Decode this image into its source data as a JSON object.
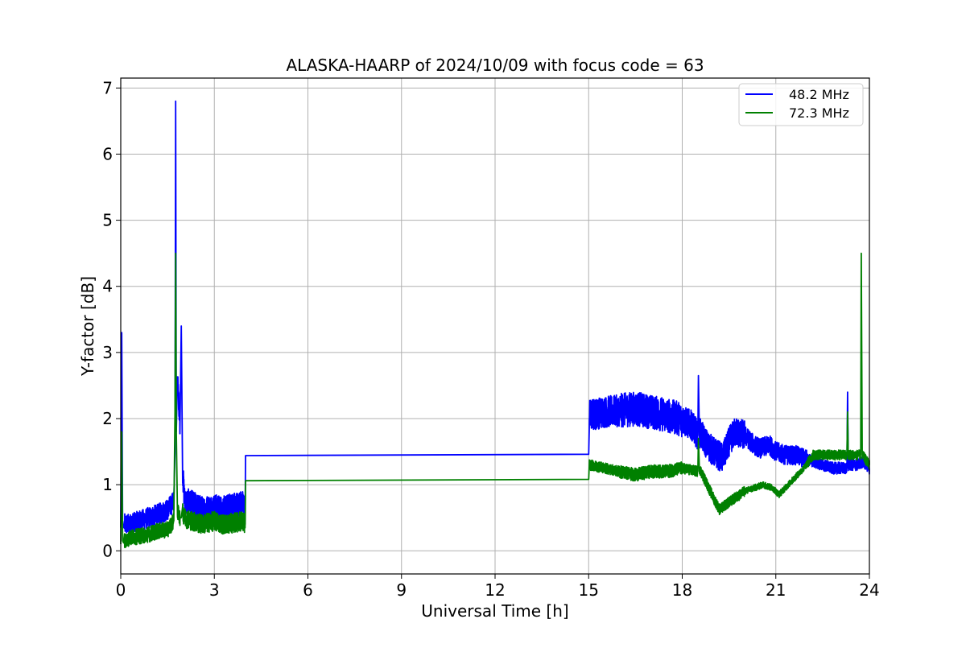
{
  "chart_data": {
    "type": "line",
    "title": "ALASKA-HAARP of 2024/10/09 with focus code = 63",
    "xlabel": "Universal Time [h]",
    "ylabel": "Y-factor [dB]",
    "xlim": [
      0,
      24
    ],
    "ylim": [
      -0.35,
      7.15
    ],
    "xticks": [
      0,
      3,
      6,
      9,
      12,
      15,
      18,
      21,
      24
    ],
    "yticks": [
      0,
      1,
      2,
      3,
      4,
      5,
      6,
      7
    ],
    "grid": true,
    "legend_position": "top-right",
    "series": [
      {
        "name": "48.2 MHz",
        "color": "#0000ff",
        "noise": [
          0.32,
          0.42,
          0.3,
          0.3,
          0.55,
          0.3,
          0.42,
          0.48,
          0.52,
          0.45,
          0.3,
          0.18
        ],
        "x": [
          0,
          0.03,
          0.06,
          0.09,
          0.12,
          0.3,
          0.6,
          0.9,
          1.2,
          1.5,
          1.7,
          1.74,
          1.76,
          1.78,
          1.82,
          1.9,
          1.94,
          1.98,
          2.05,
          2.3,
          2.6,
          3.0,
          3.3,
          3.6,
          3.9,
          3.99,
          4.0,
          15.0,
          15.02,
          15.5,
          16.0,
          16.5,
          17.0,
          17.5,
          17.9,
          18.3,
          18.5,
          18.52,
          18.55,
          18.8,
          19.0,
          19.3,
          19.5,
          19.7,
          20.0,
          20.3,
          20.5,
          20.8,
          21.0,
          21.3,
          21.6,
          21.9,
          22.2,
          22.5,
          22.8,
          23.1,
          23.28,
          23.3,
          23.32,
          23.6,
          23.8,
          24.0
        ],
        "y": [
          0.35,
          3.3,
          0.4,
          0.35,
          0.4,
          0.4,
          0.45,
          0.5,
          0.55,
          0.62,
          0.75,
          1.5,
          6.8,
          1.8,
          2.6,
          1.9,
          3.4,
          1.2,
          0.75,
          0.7,
          0.62,
          0.65,
          0.62,
          0.68,
          0.7,
          0.65,
          1.44,
          1.46,
          2.05,
          2.1,
          2.12,
          2.15,
          2.1,
          2.05,
          2.0,
          1.9,
          1.75,
          2.65,
          1.8,
          1.6,
          1.5,
          1.4,
          1.65,
          1.8,
          1.75,
          1.6,
          1.55,
          1.6,
          1.5,
          1.45,
          1.45,
          1.4,
          1.35,
          1.3,
          1.25,
          1.25,
          1.25,
          2.4,
          1.3,
          1.3,
          1.35,
          1.25
        ]
      },
      {
        "name": "72.3 MHz",
        "color": "#008000",
        "noise": [
          0.24,
          0.3,
          0.24,
          0.24,
          0.28,
          0.24,
          0.14,
          0.16,
          0.2,
          0.16,
          0.1,
          0.15
        ],
        "x": [
          0,
          0.03,
          0.06,
          0.09,
          0.12,
          0.3,
          0.6,
          0.9,
          1.2,
          1.5,
          1.7,
          1.74,
          1.76,
          1.78,
          1.82,
          1.9,
          1.94,
          1.98,
          2.05,
          2.3,
          2.6,
          3.0,
          3.3,
          3.6,
          3.9,
          3.99,
          4.0,
          15.0,
          15.02,
          15.5,
          16.0,
          16.5,
          17.0,
          17.5,
          18.0,
          18.5,
          18.52,
          18.55,
          18.8,
          19.0,
          19.2,
          19.4,
          19.7,
          20.0,
          20.3,
          20.6,
          20.9,
          21.1,
          21.3,
          21.6,
          21.9,
          22.2,
          22.5,
          22.8,
          23.1,
          23.28,
          23.3,
          23.32,
          23.5,
          23.72,
          23.74,
          23.77,
          24.0
        ],
        "y": [
          0.1,
          1.8,
          0.15,
          0.12,
          0.15,
          0.2,
          0.22,
          0.25,
          0.3,
          0.32,
          0.45,
          2.1,
          4.5,
          1.8,
          0.6,
          0.5,
          0.5,
          0.6,
          0.5,
          0.45,
          0.4,
          0.45,
          0.4,
          0.42,
          0.45,
          0.4,
          1.06,
          1.08,
          1.3,
          1.25,
          1.2,
          1.15,
          1.2,
          1.2,
          1.25,
          1.2,
          1.7,
          1.25,
          1.0,
          0.8,
          0.62,
          0.7,
          0.8,
          0.9,
          0.95,
          1.0,
          0.95,
          0.85,
          0.95,
          1.1,
          1.25,
          1.45,
          1.45,
          1.45,
          1.45,
          1.45,
          2.1,
          1.45,
          1.45,
          1.45,
          4.5,
          1.45,
          1.3
        ]
      }
    ]
  }
}
